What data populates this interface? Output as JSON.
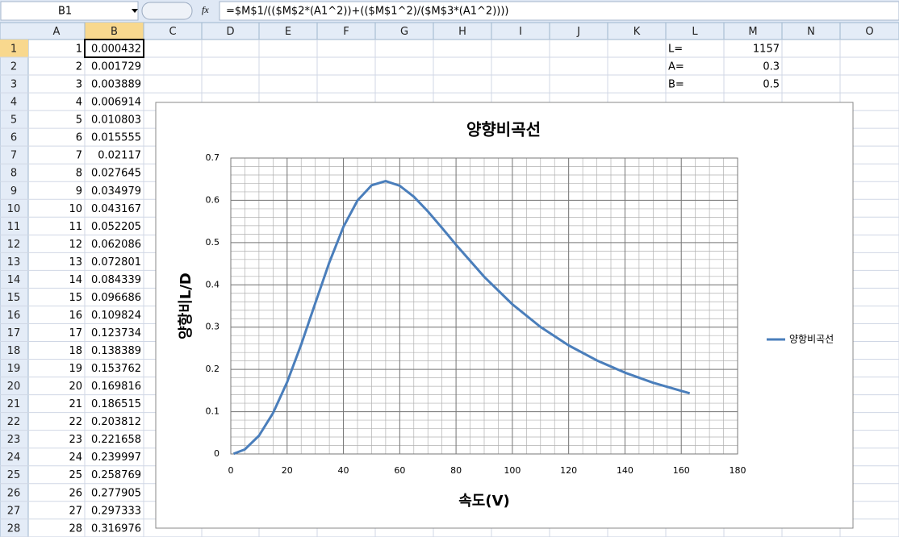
{
  "sheet": {
    "name_box": "B1",
    "formula": "=$M$1/(($M$2*(A1^2))+(($M$1^2)/($M$3*(A1^2))))",
    "columns": [
      "A",
      "B",
      "C",
      "D",
      "E",
      "F",
      "G",
      "H",
      "I",
      "J",
      "K",
      "L",
      "M",
      "N",
      "O"
    ],
    "row_numbers": [
      1,
      2,
      3,
      4,
      5,
      6,
      7,
      8,
      9,
      10,
      11,
      12,
      13,
      14,
      15,
      16,
      17,
      18,
      19,
      20,
      21,
      22,
      23,
      24,
      25,
      26,
      27,
      28
    ],
    "col_a": [
      1,
      2,
      3,
      4,
      5,
      6,
      7,
      8,
      9,
      10,
      11,
      12,
      13,
      14,
      15,
      16,
      17,
      18,
      19,
      20,
      21,
      22,
      23,
      24,
      25,
      26,
      27,
      28
    ],
    "col_b": [
      0.000432,
      0.001729,
      0.003889,
      0.006914,
      0.010803,
      0.015555,
      0.02117,
      0.027645,
      0.034979,
      0.043167,
      0.052205,
      0.062086,
      0.072801,
      0.084339,
      0.096686,
      0.109824,
      0.123734,
      0.138389,
      0.153762,
      0.169816,
      0.186515,
      0.203812,
      0.221658,
      0.239997,
      0.258769,
      0.277905,
      0.297333,
      0.316976
    ],
    "col_l": [
      "L=",
      "A=",
      "B="
    ],
    "col_m": [
      1157,
      0.3,
      0.5
    ]
  },
  "chart_data": {
    "type": "line",
    "title": "양향비곡선",
    "x_label": "속도(V)",
    "y_label": "양항비L/D",
    "x": [
      1,
      5,
      10,
      15,
      20,
      25,
      30,
      35,
      40,
      45,
      50,
      55,
      60,
      65,
      70,
      75,
      80,
      90,
      100,
      110,
      120,
      130,
      140,
      150,
      163
    ],
    "series": [
      {
        "name": "양항비곡선",
        "color": "#4a7ebb",
        "values": [
          0.000432,
          0.010803,
          0.043167,
          0.096686,
          0.16982,
          0.25877,
          0.35657,
          0.45318,
          0.53731,
          0.5996,
          0.6354,
          0.64544,
          0.63443,
          0.60857,
          0.5738,
          0.53479,
          0.4948,
          0.41912,
          0.35407,
          0.30042,
          0.25677,
          0.22129,
          0.1923,
          0.16844,
          0.14334
        ]
      }
    ],
    "xlim": [
      0,
      180
    ],
    "xticks": [
      0,
      20,
      40,
      60,
      80,
      100,
      120,
      140,
      160,
      180
    ],
    "ylim": [
      0,
      0.7
    ],
    "yticks": [
      0,
      0.1,
      0.2,
      0.3,
      0.4,
      0.5,
      0.6,
      0.7
    ],
    "grid": true,
    "x_minor_step": 5,
    "y_minor_step": 0.02,
    "legend": "right"
  }
}
